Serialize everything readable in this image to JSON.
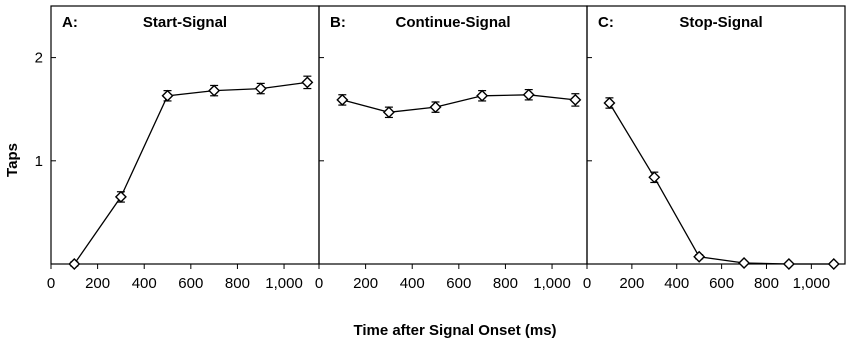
{
  "figure": {
    "ylabel": "Taps",
    "xlabel": "Time after Signal Onset (ms)"
  },
  "chart_data": [
    {
      "type": "line",
      "panel_letter": "A:",
      "title": "Start-Signal",
      "x": [
        100,
        300,
        500,
        700,
        900,
        1100
      ],
      "values": [
        0.0,
        0.65,
        1.63,
        1.68,
        1.7,
        1.76
      ],
      "errors": [
        0.02,
        0.05,
        0.05,
        0.05,
        0.05,
        0.06
      ],
      "xlim": [
        0,
        1150
      ],
      "ylim": [
        0,
        2.5
      ],
      "xticks": [
        0,
        200,
        400,
        600,
        800,
        1000
      ],
      "xtick_labels": [
        "0",
        "200",
        "400",
        "600",
        "800",
        "1,000"
      ],
      "yticks": [
        1,
        2
      ],
      "ytick_labels": [
        "1",
        "2"
      ],
      "marker": "diamond-open",
      "color": "#000000"
    },
    {
      "type": "line",
      "panel_letter": "B:",
      "title": "Continue-Signal",
      "x": [
        100,
        300,
        500,
        700,
        900,
        1100
      ],
      "values": [
        1.59,
        1.47,
        1.52,
        1.63,
        1.64,
        1.59
      ],
      "errors": [
        0.05,
        0.05,
        0.05,
        0.05,
        0.05,
        0.06
      ],
      "xlim": [
        0,
        1150
      ],
      "ylim": [
        0,
        2.5
      ],
      "xticks": [
        0,
        200,
        400,
        600,
        800,
        1000
      ],
      "xtick_labels": [
        "0",
        "200",
        "400",
        "600",
        "800",
        "1,000"
      ],
      "yticks": [
        1,
        2
      ],
      "ytick_labels": [],
      "marker": "diamond-open",
      "color": "#000000"
    },
    {
      "type": "line",
      "panel_letter": "C:",
      "title": "Stop-Signal",
      "x": [
        100,
        300,
        500,
        700,
        900,
        1100
      ],
      "values": [
        1.56,
        0.84,
        0.07,
        0.01,
        0.0,
        0.0
      ],
      "errors": [
        0.05,
        0.05,
        0.02,
        0.01,
        0.0,
        0.0
      ],
      "xlim": [
        0,
        1150
      ],
      "ylim": [
        0,
        2.5
      ],
      "xticks": [
        0,
        200,
        400,
        600,
        800,
        1000
      ],
      "xtick_labels": [
        "0",
        "200",
        "400",
        "600",
        "800",
        "1,000"
      ],
      "yticks": [
        1,
        2
      ],
      "ytick_labels": [],
      "marker": "diamond-open",
      "color": "#000000"
    }
  ]
}
